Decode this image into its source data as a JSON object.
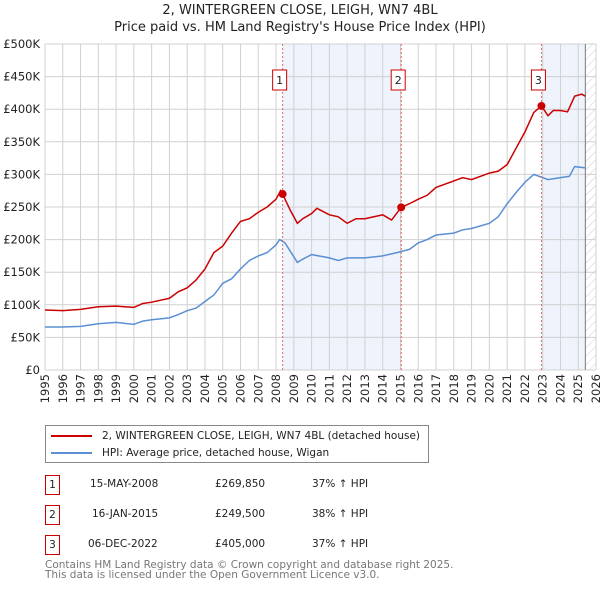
{
  "header": {
    "title_line1": "2, WINTERGREEN CLOSE, LEIGH, WN7 4BL",
    "title_line2": "Price paid vs. HM Land Registry's House Price Index (HPI)"
  },
  "chart_data": {
    "type": "line",
    "title": "2, WINTERGREEN CLOSE, LEIGH, WN7 4BL — Price paid vs. HM Land Registry's House Price Index (HPI)",
    "xlim": [
      1995,
      2026
    ],
    "ylim": [
      0,
      500000
    ],
    "x_ticks": [
      "1995",
      "1996",
      "1997",
      "1998",
      "1999",
      "2000",
      "2001",
      "2002",
      "2003",
      "2004",
      "2005",
      "2006",
      "2007",
      "2008",
      "2009",
      "2010",
      "2011",
      "2012",
      "2013",
      "2014",
      "2015",
      "2016",
      "2017",
      "2018",
      "2019",
      "2020",
      "2021",
      "2022",
      "2023",
      "2024",
      "2025",
      "2026"
    ],
    "y_ticks": [
      {
        "v": 0,
        "label": "£0"
      },
      {
        "v": 50000,
        "label": "£50K"
      },
      {
        "v": 100000,
        "label": "£100K"
      },
      {
        "v": 150000,
        "label": "£150K"
      },
      {
        "v": 200000,
        "label": "£200K"
      },
      {
        "v": 250000,
        "label": "£250K"
      },
      {
        "v": 300000,
        "label": "£300K"
      },
      {
        "v": 350000,
        "label": "£350K"
      },
      {
        "v": 400000,
        "label": "£400K"
      },
      {
        "v": 450000,
        "label": "£450K"
      },
      {
        "v": 500000,
        "label": "£500K"
      }
    ],
    "grid": true,
    "colors": {
      "property": "#cc0000",
      "hpi": "#5b8fd4",
      "shade": "#eef3fc"
    },
    "series": [
      {
        "name": "2, WINTERGREEN CLOSE, LEIGH, WN7 4BL (detached house)",
        "points": [
          [
            1995,
            92000
          ],
          [
            1996,
            91000
          ],
          [
            1997,
            93000
          ],
          [
            1998,
            97000
          ],
          [
            1999,
            98000
          ],
          [
            2000,
            96000
          ],
          [
            2000.5,
            102000
          ],
          [
            2001,
            104000
          ],
          [
            2002,
            110000
          ],
          [
            2002.5,
            120000
          ],
          [
            2003,
            126000
          ],
          [
            2003.5,
            138000
          ],
          [
            2004,
            155000
          ],
          [
            2004.5,
            180000
          ],
          [
            2005,
            190000
          ],
          [
            2005.5,
            210000
          ],
          [
            2006,
            228000
          ],
          [
            2006.5,
            232000
          ],
          [
            2007,
            242000
          ],
          [
            2007.5,
            250000
          ],
          [
            2008,
            262000
          ],
          [
            2008.25,
            275000
          ],
          [
            2008.37,
            269850
          ],
          [
            2008.8,
            245000
          ],
          [
            2009.2,
            225000
          ],
          [
            2009.5,
            232000
          ],
          [
            2010,
            240000
          ],
          [
            2010.3,
            248000
          ],
          [
            2011,
            238000
          ],
          [
            2011.5,
            235000
          ],
          [
            2012,
            225000
          ],
          [
            2012.5,
            232000
          ],
          [
            2013,
            232000
          ],
          [
            2013.5,
            235000
          ],
          [
            2014,
            238000
          ],
          [
            2014.5,
            230000
          ],
          [
            2015.04,
            249500
          ],
          [
            2015.5,
            255000
          ],
          [
            2016,
            262000
          ],
          [
            2016.5,
            268000
          ],
          [
            2017,
            280000
          ],
          [
            2018,
            290000
          ],
          [
            2018.5,
            295000
          ],
          [
            2019,
            292000
          ],
          [
            2020,
            302000
          ],
          [
            2020.5,
            305000
          ],
          [
            2021,
            315000
          ],
          [
            2021.5,
            340000
          ],
          [
            2022,
            365000
          ],
          [
            2022.5,
            395000
          ],
          [
            2022.93,
            405000
          ],
          [
            2023.3,
            390000
          ],
          [
            2023.6,
            398000
          ],
          [
            2024,
            398000
          ],
          [
            2024.4,
            396000
          ],
          [
            2024.8,
            420000
          ],
          [
            2025.2,
            423000
          ],
          [
            2025.4,
            420000
          ]
        ]
      },
      {
        "name": "HPI: Average price, detached house, Wigan",
        "points": [
          [
            1995,
            66000
          ],
          [
            1996,
            66000
          ],
          [
            1997,
            67000
          ],
          [
            1998,
            71000
          ],
          [
            1999,
            73000
          ],
          [
            2000,
            70000
          ],
          [
            2000.5,
            75000
          ],
          [
            2001,
            77000
          ],
          [
            2002,
            80000
          ],
          [
            2002.5,
            85000
          ],
          [
            2003,
            91000
          ],
          [
            2003.5,
            95000
          ],
          [
            2004,
            105000
          ],
          [
            2004.5,
            115000
          ],
          [
            2005,
            133000
          ],
          [
            2005.5,
            140000
          ],
          [
            2006,
            155000
          ],
          [
            2006.5,
            168000
          ],
          [
            2007,
            175000
          ],
          [
            2007.5,
            180000
          ],
          [
            2008,
            192000
          ],
          [
            2008.2,
            200000
          ],
          [
            2008.5,
            195000
          ],
          [
            2009.2,
            165000
          ],
          [
            2009.5,
            170000
          ],
          [
            2010,
            177000
          ],
          [
            2011,
            172000
          ],
          [
            2011.5,
            168000
          ],
          [
            2012,
            172000
          ],
          [
            2013,
            172000
          ],
          [
            2014,
            175000
          ],
          [
            2014.8,
            180000
          ],
          [
            2015.5,
            185000
          ],
          [
            2016,
            195000
          ],
          [
            2016.5,
            200000
          ],
          [
            2017,
            207000
          ],
          [
            2018,
            210000
          ],
          [
            2018.5,
            215000
          ],
          [
            2019,
            217000
          ],
          [
            2020,
            225000
          ],
          [
            2020.5,
            235000
          ],
          [
            2021,
            255000
          ],
          [
            2021.5,
            272000
          ],
          [
            2022,
            288000
          ],
          [
            2022.5,
            300000
          ],
          [
            2023.3,
            292000
          ],
          [
            2024,
            295000
          ],
          [
            2024.5,
            297000
          ],
          [
            2024.8,
            312000
          ],
          [
            2025.4,
            310000
          ]
        ]
      }
    ],
    "sales": [
      {
        "id": "1",
        "x": 2008.37,
        "y": 269850
      },
      {
        "id": "2",
        "x": 2015.04,
        "y": 249500
      },
      {
        "id": "3",
        "x": 2022.93,
        "y": 405000
      }
    ],
    "shaded_ranges": [
      [
        2008.37,
        2015.04
      ],
      [
        2022.93,
        2025.4
      ]
    ],
    "data_end": 2025.4,
    "legend_position": "below"
  },
  "legend": {
    "property": "2, WINTERGREEN CLOSE, LEIGH, WN7 4BL (detached house)",
    "hpi": "HPI: Average price, detached house, Wigan"
  },
  "transactions": [
    {
      "num": "1",
      "date": "15-MAY-2008",
      "price": "£269,850",
      "hpi": "37% ↑ HPI"
    },
    {
      "num": "2",
      "date": "16-JAN-2015",
      "price": "£249,500",
      "hpi": "38% ↑ HPI"
    },
    {
      "num": "3",
      "date": "06-DEC-2022",
      "price": "£405,000",
      "hpi": "37% ↑ HPI"
    }
  ],
  "footer": {
    "line1": "Contains HM Land Registry data © Crown copyright and database right 2025.",
    "line2": "This data is licensed under the Open Government Licence v3.0."
  }
}
